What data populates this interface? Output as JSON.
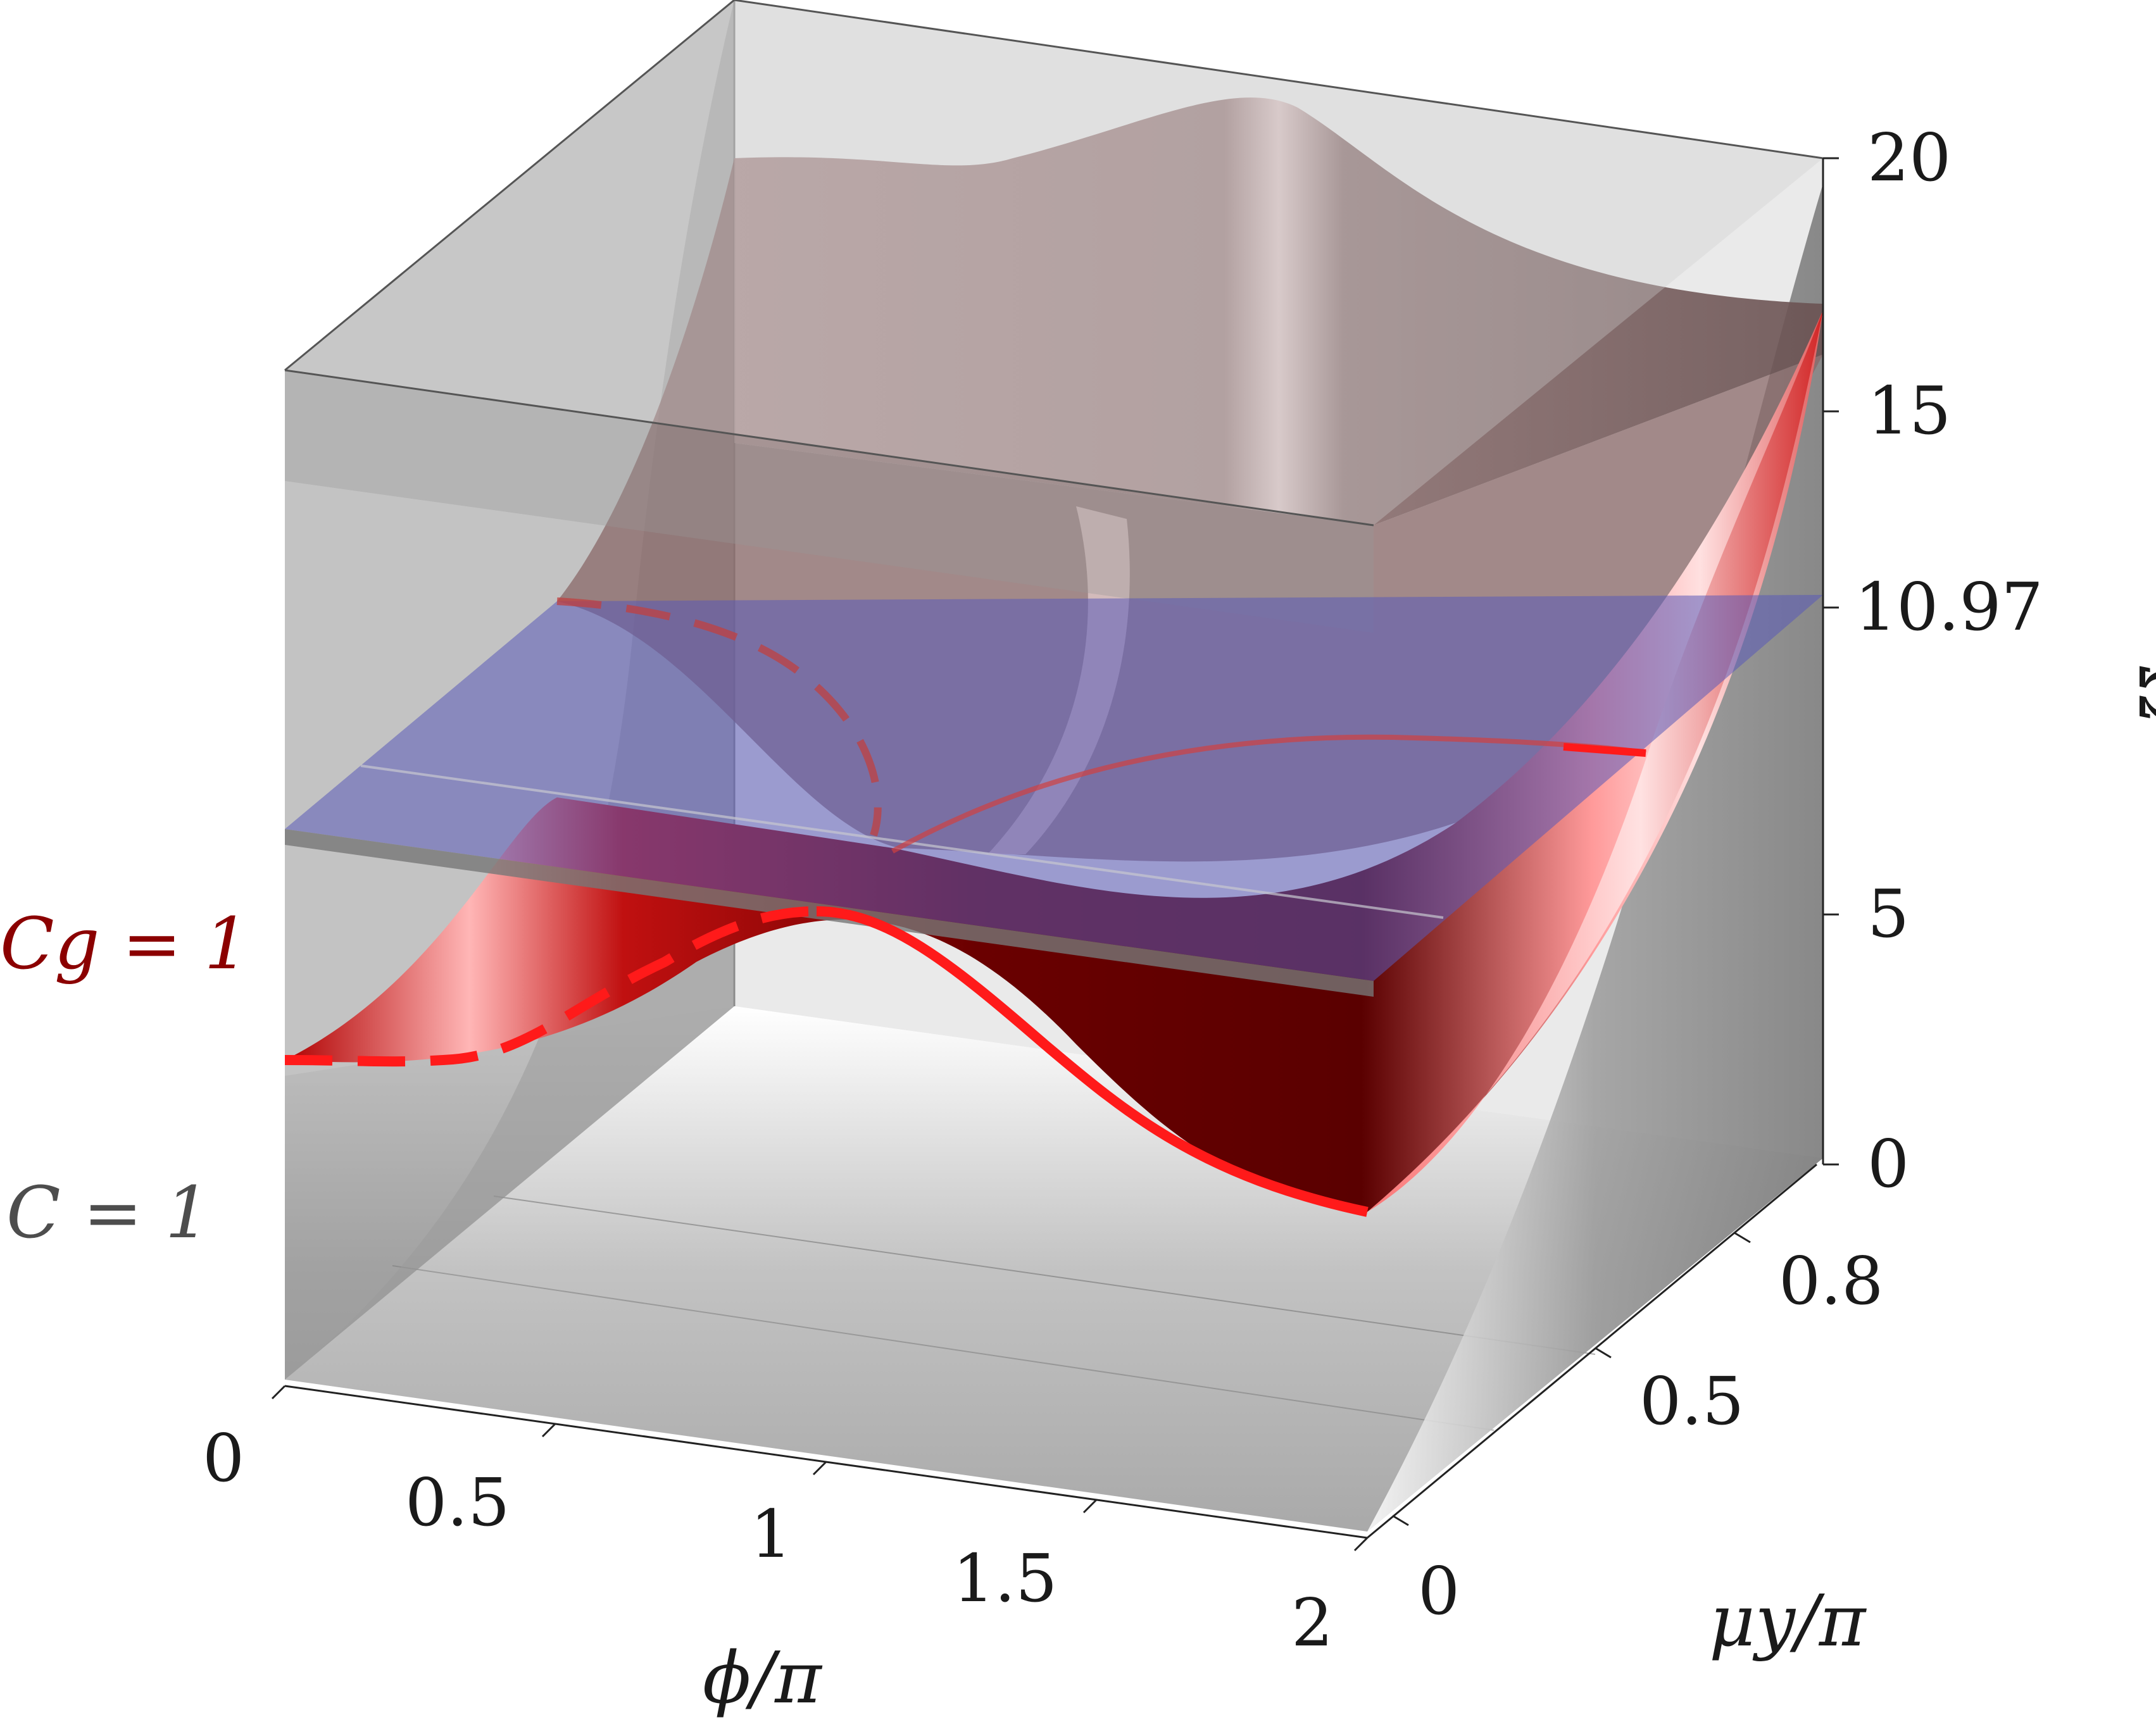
{
  "chart_data": {
    "type": "surface",
    "axes": {
      "x": {
        "label": "ϕ/π",
        "range": [
          0,
          2
        ],
        "ticks": [
          "0",
          "0.5",
          "1",
          "1.5",
          "2"
        ]
      },
      "y": {
        "label": "μy/π",
        "range": [
          0,
          1
        ],
        "ticks": [
          "0",
          "0.5",
          "0.8"
        ]
      },
      "z": {
        "label": "Ω",
        "range": [
          0,
          20
        ],
        "ticks": [
          "0",
          "5",
          "10.97",
          "15",
          "20"
        ]
      }
    },
    "annotations": [
      {
        "text": "Cg = 1",
        "color": "#8b0000"
      },
      {
        "text": "C = 1",
        "color": "#4d4d4d"
      }
    ],
    "series": [
      {
        "kind": "surface",
        "color": "#8b0000",
        "front_edge_curve": {
          "x": [
            0,
            0.25,
            0.5,
            0.75,
            1,
            1.25,
            1.5,
            1.75,
            2
          ],
          "z": [
            1.5,
            1.6,
            2.2,
            3.4,
            4.5,
            3.8,
            2.3,
            0.6,
            0
          ]
        }
      },
      {
        "kind": "surface",
        "color": "#a08080",
        "back_edge_curve": {
          "x": [
            0,
            0.5,
            1,
            1.5,
            2
          ],
          "z": [
            18,
            18,
            18.6,
            19.5,
            17.5
          ]
        }
      },
      {
        "kind": "plane",
        "color": "#5050b4",
        "z": 10.97
      }
    ],
    "grid": true
  }
}
